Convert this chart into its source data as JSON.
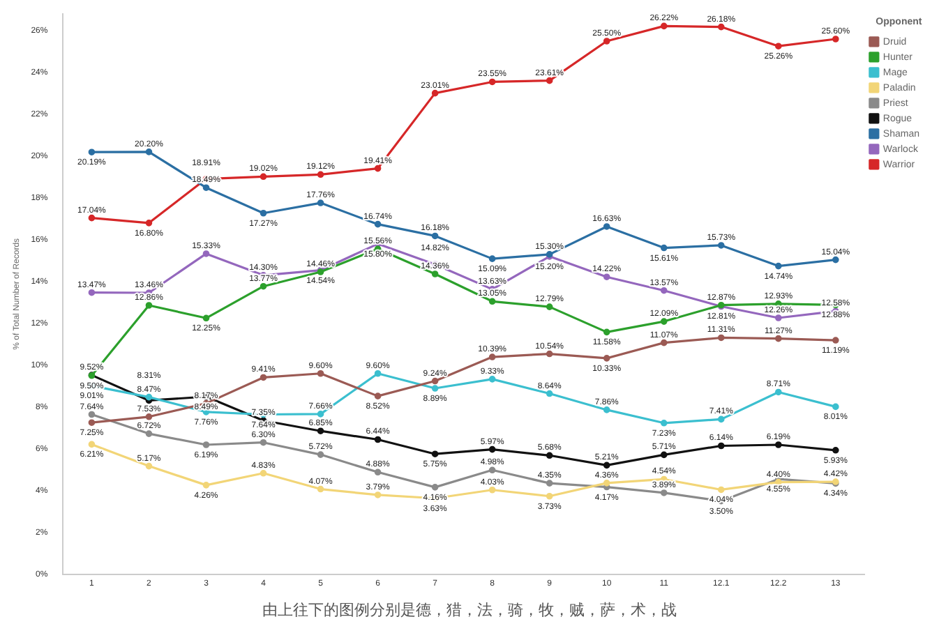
{
  "chart_data": {
    "type": "line",
    "ylabel": "% of Total Number of Records",
    "legend_title": "Opponent",
    "legend": "top right",
    "marker": "circle",
    "grid": false,
    "categories": [
      "1",
      "2",
      "3",
      "4",
      "5",
      "6",
      "7",
      "8",
      "9",
      "10",
      "11",
      "12.1",
      "12.2",
      "13"
    ],
    "ylim": [
      0,
      26.8
    ],
    "yticks": [
      {
        "value": 0,
        "label": "0%"
      },
      {
        "value": 2,
        "label": "2%"
      },
      {
        "value": 4,
        "label": "4%"
      },
      {
        "value": 6,
        "label": "6%"
      },
      {
        "value": 8,
        "label": "8%"
      },
      {
        "value": 10,
        "label": "10%"
      },
      {
        "value": 12,
        "label": "12%"
      },
      {
        "value": 14,
        "label": "14%"
      },
      {
        "value": 16,
        "label": "16%"
      },
      {
        "value": 18,
        "label": "18%"
      },
      {
        "value": 20,
        "label": "20%"
      },
      {
        "value": 22,
        "label": "22%"
      },
      {
        "value": 24,
        "label": "24%"
      },
      {
        "value": 26,
        "label": "26%"
      }
    ],
    "series": [
      {
        "name": "Druid",
        "color": "#9b5a54",
        "values": [
          7.25,
          7.53,
          8.17,
          9.41,
          9.6,
          8.52,
          9.24,
          10.39,
          10.54,
          10.33,
          11.07,
          11.31,
          11.27,
          11.19
        ],
        "value_labels": [
          "7.25%",
          "7.53%",
          "8.17%",
          "9.41%",
          "9.60%",
          "8.52%",
          "9.24%",
          "10.39%",
          "10.54%",
          "10.33%",
          "11.07%",
          "11.31%",
          "11.27%",
          "11.19%"
        ]
      },
      {
        "name": "Hunter",
        "color": "#2ca02c",
        "values": [
          9.5,
          12.86,
          12.25,
          13.77,
          14.46,
          15.56,
          14.36,
          13.05,
          12.79,
          11.58,
          12.09,
          12.87,
          12.93,
          12.88
        ],
        "value_labels": [
          "9.50%",
          "12.86%",
          "12.25%",
          "13.77%",
          "14.46%",
          "15.56%",
          "14.36%",
          "13.05%",
          "12.79%",
          "11.58%",
          "12.09%",
          "12.87%",
          "12.93%",
          "12.88%"
        ]
      },
      {
        "name": "Mage",
        "color": "#3bbfcf",
        "values": [
          9.01,
          8.47,
          7.76,
          7.64,
          7.66,
          9.6,
          8.89,
          9.33,
          8.64,
          7.86,
          7.23,
          7.41,
          8.71,
          8.01
        ],
        "value_labels": [
          "9.01%",
          "8.47%",
          "7.76%",
          "7.64%",
          "7.66%",
          "9.60%",
          "8.89%",
          "9.33%",
          "8.64%",
          "7.86%",
          "7.23%",
          "7.41%",
          "8.71%",
          "8.01%"
        ]
      },
      {
        "name": "Paladin",
        "color": "#f2d577",
        "values": [
          6.21,
          5.17,
          4.26,
          4.83,
          4.07,
          3.79,
          3.63,
          4.03,
          3.73,
          4.36,
          4.54,
          4.04,
          4.4,
          4.42
        ],
        "value_labels": [
          "6.21%",
          "5.17%",
          "4.26%",
          "4.83%",
          "4.07%",
          "3.79%",
          "3.63%",
          "4.03%",
          "3.73%",
          "4.36%",
          "4.54%",
          "4.04%",
          "4.40%",
          "4.42%"
        ]
      },
      {
        "name": "Priest",
        "color": "#8a8a8a",
        "values": [
          7.64,
          6.72,
          6.19,
          6.3,
          5.72,
          4.88,
          4.16,
          4.98,
          4.35,
          4.17,
          3.89,
          3.5,
          4.55,
          4.34
        ],
        "value_labels": [
          "7.64%",
          "6.72%",
          "6.19%",
          "6.30%",
          "5.72%",
          "4.88%",
          "4.16%",
          "4.98%",
          "4.35%",
          "4.17%",
          "3.89%",
          "3.50%",
          "4.55%",
          "4.34%"
        ]
      },
      {
        "name": "Rogue",
        "color": "#111111",
        "values": [
          9.52,
          8.31,
          8.49,
          7.35,
          6.85,
          6.44,
          5.75,
          5.97,
          5.68,
          5.21,
          5.71,
          6.14,
          6.19,
          5.93
        ],
        "value_labels": [
          "9.52%",
          "8.31%",
          "8.49%",
          "7.35%",
          "6.85%",
          "6.44%",
          "5.75%",
          "5.97%",
          "5.68%",
          "5.21%",
          "5.71%",
          "6.14%",
          "6.19%",
          "5.93%"
        ]
      },
      {
        "name": "Shaman",
        "color": "#2b6fa3",
        "values": [
          20.19,
          20.2,
          18.49,
          17.27,
          17.76,
          16.74,
          16.18,
          15.09,
          15.3,
          16.63,
          15.61,
          15.73,
          14.74,
          15.04
        ],
        "value_labels": [
          "20.19%",
          "20.20%",
          "18.49%",
          "17.27%",
          "17.76%",
          "16.74%",
          "16.18%",
          "15.09%",
          "15.30%",
          "16.63%",
          "15.61%",
          "15.73%",
          "14.74%",
          "15.04%"
        ]
      },
      {
        "name": "Warlock",
        "color": "#9467bd",
        "values": [
          13.47,
          13.46,
          15.33,
          14.3,
          14.54,
          15.8,
          14.82,
          13.63,
          15.2,
          14.22,
          13.57,
          12.81,
          12.26,
          12.58
        ],
        "value_labels": [
          "13.47%",
          "13.46%",
          "15.33%",
          "14.30%",
          "14.54%",
          "15.80%",
          "14.82%",
          "13.63%",
          "15.20%",
          "14.22%",
          "13.57%",
          "12.81%",
          "12.26%",
          "12.58%"
        ]
      },
      {
        "name": "Warrior",
        "color": "#d62728",
        "values": [
          17.04,
          16.8,
          18.91,
          19.02,
          19.12,
          19.41,
          23.01,
          23.55,
          23.61,
          25.5,
          26.22,
          26.18,
          25.26,
          25.6
        ],
        "value_labels": [
          "17.04%",
          "16.80%",
          "18.91%",
          "19.02%",
          "19.12%",
          "19.41%",
          "23.01%",
          "23.55%",
          "23.61%",
          "25.50%",
          "26.22%",
          "26.18%",
          "25.26%",
          "25.60%"
        ]
      }
    ],
    "annotations": [
      "由上往下的图例分别是德，猎，法，骑，牧，贼，萨，术，战"
    ]
  }
}
